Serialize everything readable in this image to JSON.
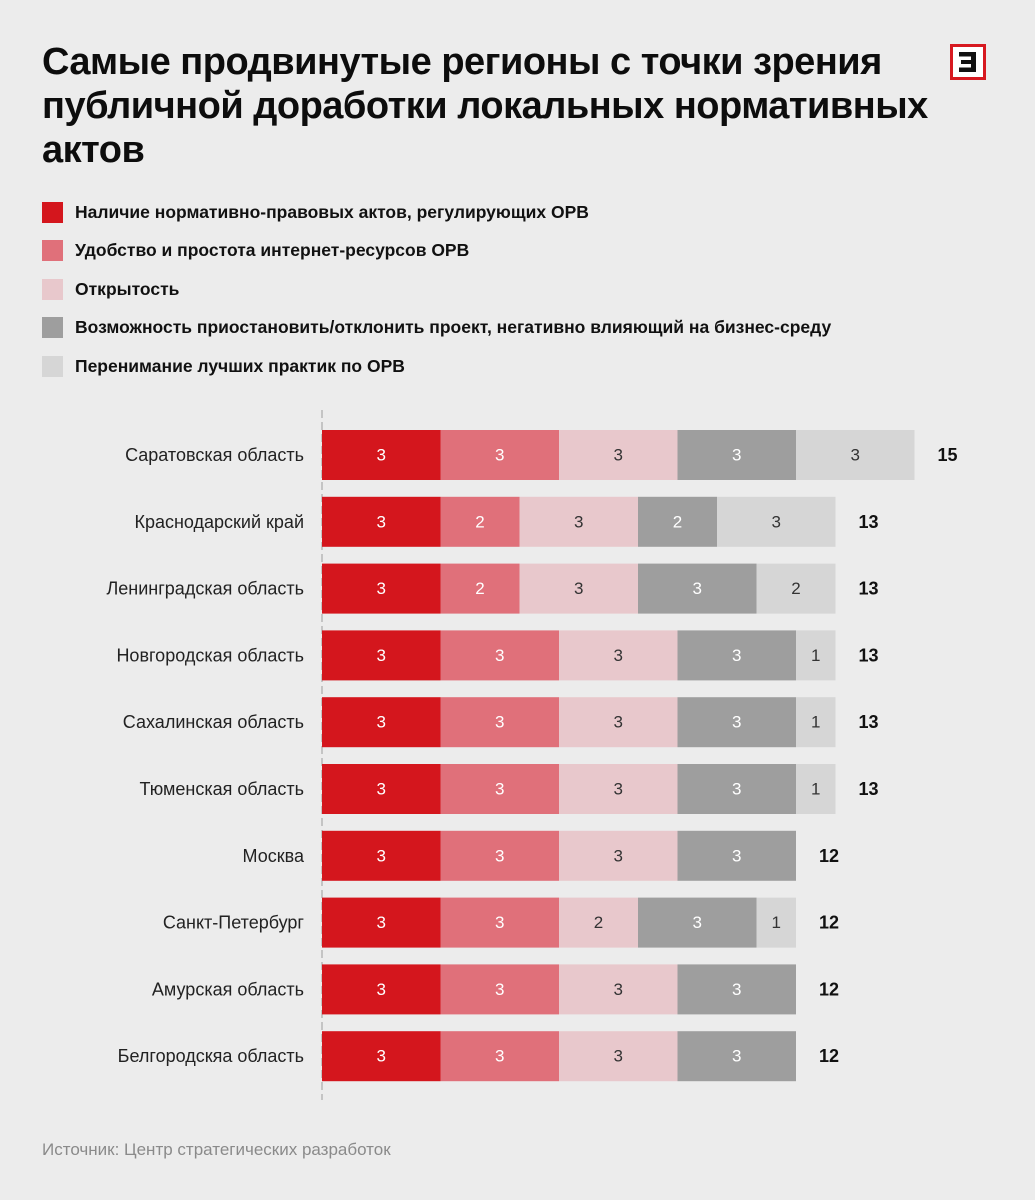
{
  "title": "Самые продвинутые регионы с точки зрения публичной доработки локальных нормативных актов",
  "logo": {
    "icon": "brand-logo-icon",
    "color": "#d71920"
  },
  "source": "Источник: Центр стратегических разработок",
  "colors": {
    "series": [
      "#d4161d",
      "#e0707a",
      "#e8c8cc",
      "#9e9e9e",
      "#d6d6d6"
    ],
    "segment_text": [
      "#ffffff",
      "#ffffff",
      "#333333",
      "#ffffff",
      "#333333"
    ],
    "total_text": "#111111",
    "axis": "#c4c4c4"
  },
  "chart_data": {
    "type": "bar",
    "orientation": "horizontal",
    "stacked": true,
    "title": "Самые продвинутые регионы с точки зрения публичной доработки локальных нормативных актов",
    "xlim": [
      0,
      15
    ],
    "grid": false,
    "legend_position": "top",
    "categories": [
      "Саратовская область",
      "Краснодарский край",
      "Ленинградская область",
      "Новгородская область",
      "Сахалинская область",
      "Тюменская область",
      "Москва",
      "Санкт-Петербург",
      "Амурская область",
      "Белгородскяа область"
    ],
    "series": [
      {
        "name": "Наличие нормативно-правовых актов, регулирующих ОРВ",
        "values": [
          3,
          3,
          3,
          3,
          3,
          3,
          3,
          3,
          3,
          3
        ]
      },
      {
        "name": "Удобство и простота интернет-ресурсов ОРВ",
        "values": [
          3,
          2,
          2,
          3,
          3,
          3,
          3,
          3,
          3,
          3
        ]
      },
      {
        "name": "Открытость",
        "values": [
          3,
          3,
          3,
          3,
          3,
          3,
          3,
          2,
          3,
          3
        ]
      },
      {
        "name": "Возможность приостановить/отклонить проект, негативно влияющий на бизнес-среду",
        "values": [
          3,
          2,
          3,
          3,
          3,
          3,
          3,
          3,
          3,
          3
        ]
      },
      {
        "name": "Перенимание лучших практик по ОРВ",
        "values": [
          3,
          3,
          2,
          1,
          1,
          1,
          0,
          1,
          0,
          0
        ]
      }
    ],
    "totals": [
      "15",
      "13",
      "13",
      "13",
      "13",
      "13",
      "12",
      "12",
      "12",
      "12"
    ]
  }
}
